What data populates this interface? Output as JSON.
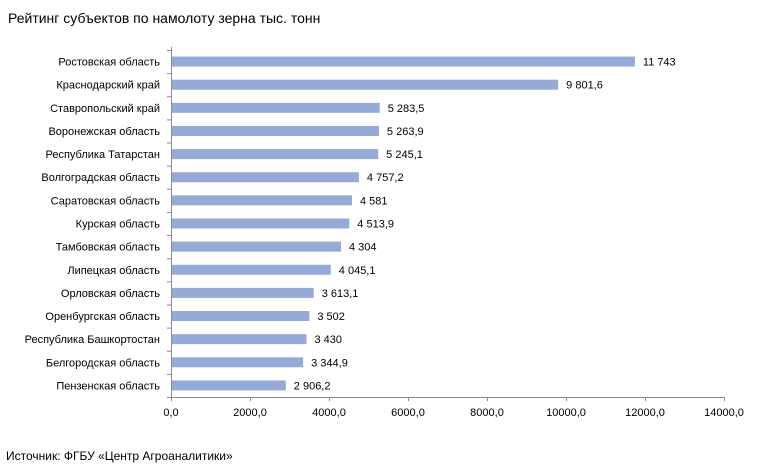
{
  "title": "Рейтинг субъектов по намолоту зерна тыс. тонн",
  "source": "Источник: ФГБУ «Центр Агроаналитики»",
  "chart_data": {
    "type": "bar",
    "orientation": "horizontal",
    "title": "Рейтинг субъектов по намолоту зерна тыс. тонн",
    "xlabel": "",
    "ylabel": "",
    "xlim": [
      0,
      14000
    ],
    "categories": [
      "Ростовская область",
      "Краснодарский край",
      "Ставропольский край",
      "Воронежская область",
      "Республика Татарстан",
      "Волгоградская область",
      "Саратовская область",
      "Курская область",
      "Тамбовская область",
      "Липецкая область",
      "Орловская область",
      "Оренбургская область",
      "Республика Башкортостан",
      "Белгородская область",
      "Пензенская область"
    ],
    "values": [
      11743,
      9801.6,
      5283.5,
      5263.9,
      5245.1,
      4757.2,
      4581,
      4513.9,
      4304,
      4045.1,
      3613.1,
      3502,
      3430,
      3344.9,
      2906.2
    ],
    "value_labels": [
      "11 743",
      "9 801,6",
      "5 283,5",
      "5 263,9",
      "5 245,1",
      "4 757,2",
      "4 581",
      "4 513,9",
      "4 304",
      "4 045,1",
      "3 613,1",
      "3 502",
      "3 430",
      "3 344,9",
      "2 906,2"
    ],
    "xticks": [
      0,
      2000,
      4000,
      6000,
      8000,
      10000,
      12000,
      14000
    ],
    "xtick_labels": [
      "0,0",
      "2000,0",
      "4000,0",
      "6000,0",
      "8000,0",
      "10000,0",
      "12000,0",
      "14000,0"
    ],
    "grid": false,
    "legend": "none",
    "bar_color": "#95AAD8"
  }
}
